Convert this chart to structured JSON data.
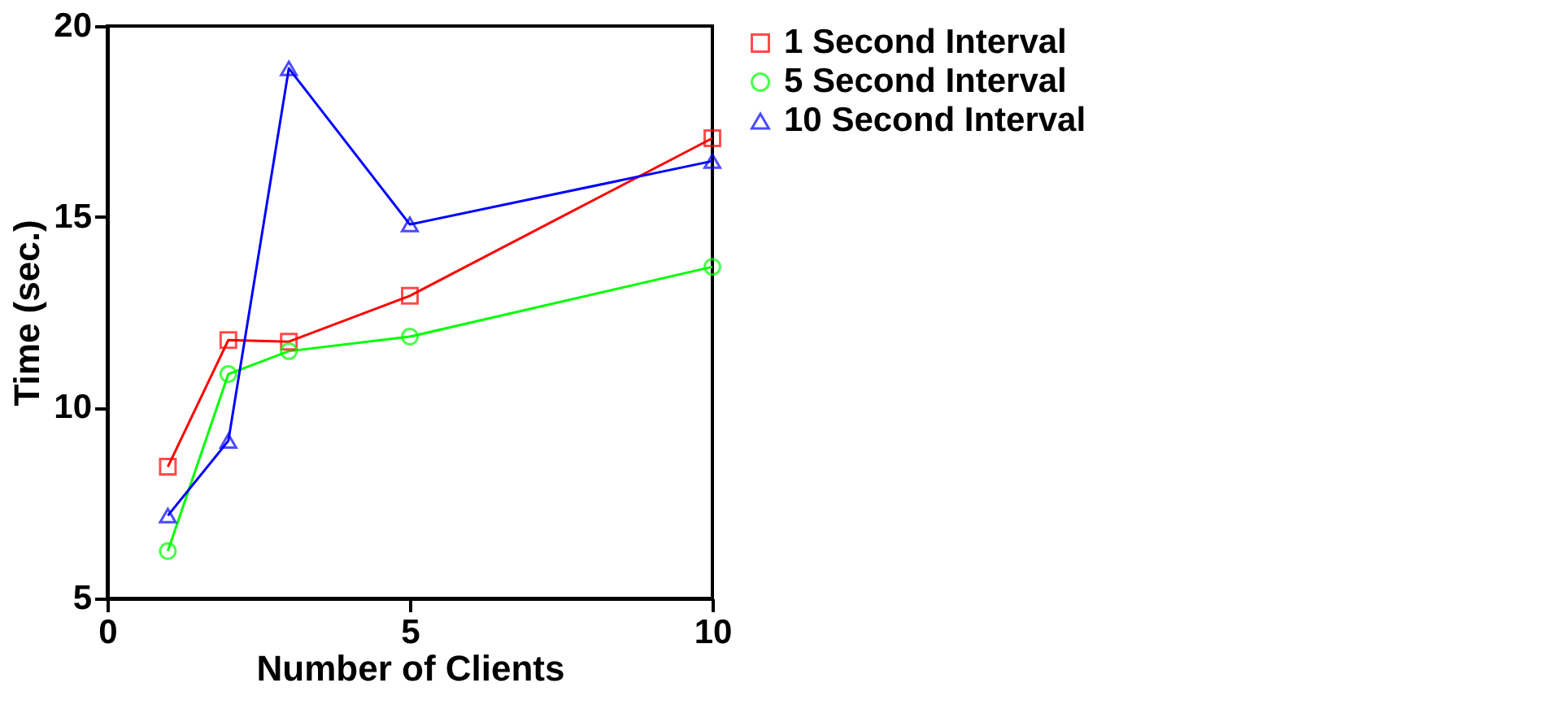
{
  "chart_data": {
    "type": "line",
    "xlabel": "Number of Clients",
    "ylabel": "Time (sec.)",
    "x": [
      1,
      2,
      3,
      5,
      10
    ],
    "series": [
      {
        "name": "1 Second Interval",
        "color": "#ff0000",
        "marker": "square",
        "values": [
          8.45,
          11.77,
          11.73,
          12.93,
          17.06
        ]
      },
      {
        "name": "5 Second Interval",
        "color": "#00ff00",
        "marker": "circle",
        "values": [
          6.24,
          10.88,
          11.48,
          11.86,
          13.69
        ]
      },
      {
        "name": "10 Second Interval",
        "color": "#0000ff",
        "marker": "triangle",
        "values": [
          7.17,
          9.13,
          18.89,
          14.8,
          16.46
        ]
      }
    ],
    "xlim": [
      0,
      10
    ],
    "xticks": [
      0,
      5,
      10
    ],
    "ylim": [
      5,
      20
    ],
    "yticks": [
      5,
      10,
      15,
      20
    ],
    "grid": false,
    "legend": "right",
    "line_style": "solid"
  }
}
